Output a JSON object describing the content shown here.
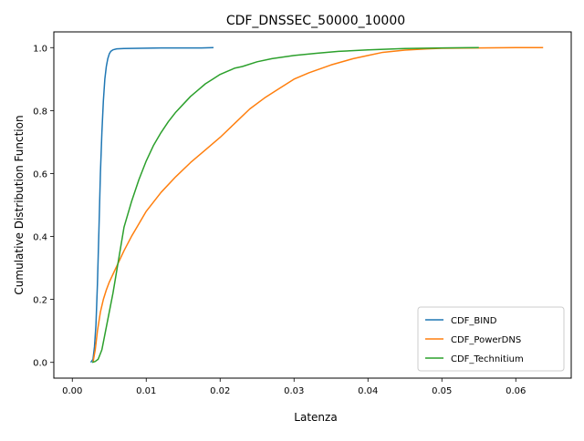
{
  "chart_data": {
    "type": "line",
    "title": "CDF_DNSSEC_50000_10000",
    "xlabel": "Latenza",
    "ylabel": "Cumulative Distribution Function",
    "xlim": [
      -0.0025,
      0.0675
    ],
    "ylim": [
      -0.05,
      1.05
    ],
    "x_ticks": [
      0.0,
      0.01,
      0.02,
      0.03,
      0.04,
      0.05,
      0.06
    ],
    "x_tick_labels": [
      "0.00",
      "0.01",
      "0.02",
      "0.03",
      "0.04",
      "0.05",
      "0.06"
    ],
    "y_ticks": [
      0.0,
      0.2,
      0.4,
      0.6,
      0.8,
      1.0
    ],
    "y_tick_labels": [
      "0.0",
      "0.2",
      "0.4",
      "0.6",
      "0.8",
      "1.0"
    ],
    "grid": false,
    "legend_position": "lower right",
    "series": [
      {
        "name": "CDF_BIND",
        "color": "#1f77b4",
        "x": [
          0.0025,
          0.0028,
          0.003,
          0.0032,
          0.0034,
          0.0036,
          0.0038,
          0.004,
          0.0042,
          0.0044,
          0.0046,
          0.0048,
          0.005,
          0.0052,
          0.0055,
          0.006,
          0.007,
          0.009,
          0.012,
          0.015,
          0.0175,
          0.0191
        ],
        "y": [
          0.0,
          0.01,
          0.05,
          0.12,
          0.25,
          0.42,
          0.6,
          0.73,
          0.83,
          0.9,
          0.94,
          0.965,
          0.98,
          0.988,
          0.993,
          0.996,
          0.997,
          0.998,
          0.999,
          0.999,
          0.999,
          1.0
        ]
      },
      {
        "name": "CDF_PowerDNS",
        "color": "#ff7f0e",
        "x": [
          0.0028,
          0.0031,
          0.0034,
          0.0038,
          0.0042,
          0.0046,
          0.005,
          0.0055,
          0.006,
          0.0065,
          0.007,
          0.008,
          0.009,
          0.01,
          0.012,
          0.014,
          0.016,
          0.018,
          0.02,
          0.022,
          0.024,
          0.026,
          0.028,
          0.03,
          0.032,
          0.035,
          0.038,
          0.04,
          0.042,
          0.045,
          0.048,
          0.05,
          0.055,
          0.06,
          0.0637
        ],
        "y": [
          0.0,
          0.04,
          0.1,
          0.16,
          0.2,
          0.23,
          0.255,
          0.28,
          0.305,
          0.33,
          0.355,
          0.4,
          0.44,
          0.48,
          0.54,
          0.59,
          0.635,
          0.675,
          0.715,
          0.76,
          0.805,
          0.84,
          0.87,
          0.9,
          0.92,
          0.945,
          0.965,
          0.975,
          0.985,
          0.992,
          0.996,
          0.998,
          0.999,
          1.0,
          1.0
        ]
      },
      {
        "name": "CDF_Technitium",
        "color": "#2ca02c",
        "x": [
          0.0027,
          0.0031,
          0.0035,
          0.004,
          0.0045,
          0.005,
          0.0055,
          0.006,
          0.0065,
          0.007,
          0.008,
          0.009,
          0.01,
          0.011,
          0.012,
          0.013,
          0.014,
          0.015,
          0.016,
          0.017,
          0.018,
          0.019,
          0.02,
          0.021,
          0.022,
          0.023,
          0.025,
          0.027,
          0.03,
          0.033,
          0.036,
          0.04,
          0.045,
          0.05,
          0.055
        ],
        "y": [
          0.0,
          0.003,
          0.01,
          0.04,
          0.1,
          0.16,
          0.22,
          0.29,
          0.36,
          0.43,
          0.51,
          0.58,
          0.64,
          0.69,
          0.73,
          0.765,
          0.795,
          0.82,
          0.845,
          0.865,
          0.885,
          0.9,
          0.915,
          0.925,
          0.935,
          0.94,
          0.955,
          0.965,
          0.975,
          0.982,
          0.988,
          0.993,
          0.997,
          0.999,
          1.0
        ]
      }
    ]
  }
}
